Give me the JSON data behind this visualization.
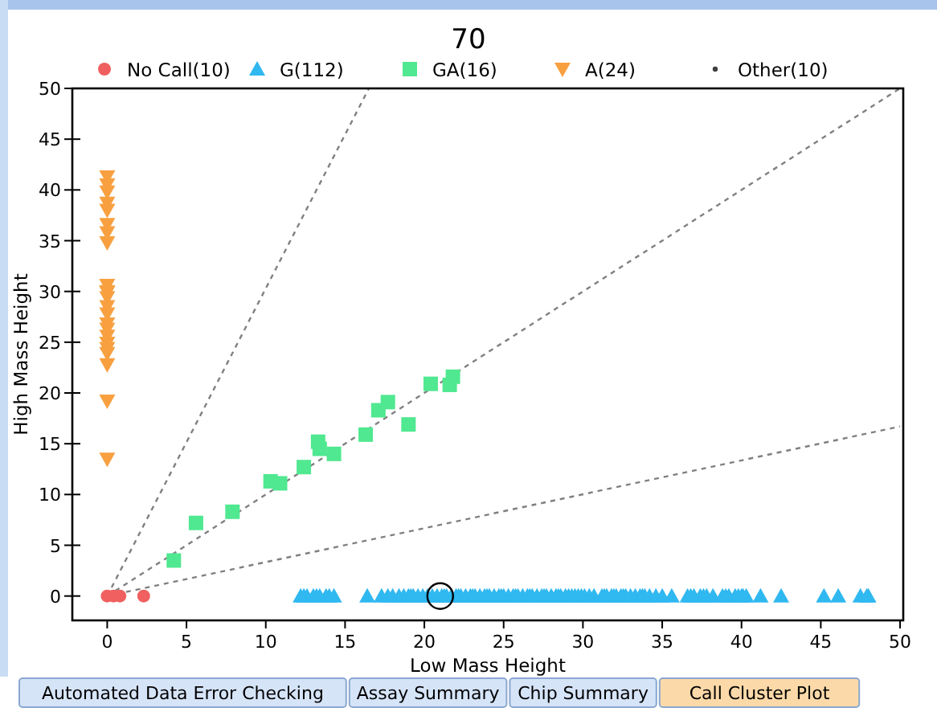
{
  "chart_data": {
    "type": "scatter",
    "title": "70",
    "xlabel": "Low Mass Height",
    "ylabel": "High Mass Height",
    "xlim": [
      -2.2,
      50.2
    ],
    "ylim": [
      -2.4,
      50
    ],
    "xticks": [
      0,
      5,
      10,
      15,
      20,
      25,
      30,
      35,
      40,
      45,
      50
    ],
    "yticks": [
      0,
      5,
      10,
      15,
      20,
      25,
      30,
      35,
      40,
      45,
      50
    ],
    "grid": false,
    "legend": "top",
    "line_style": "dashed",
    "annotations": [
      "Automated Data Error Checking",
      "Assay Summary",
      "Chip Summary",
      "Call Cluster Plot"
    ],
    "series": [
      {
        "type": "line",
        "color": "#808080",
        "x": [
          0,
          16.5
        ],
        "values": [
          0,
          50
        ]
      },
      {
        "type": "line",
        "color": "#808080",
        "x": [
          0,
          50
        ],
        "values": [
          0,
          50
        ]
      },
      {
        "type": "line",
        "color": "#808080",
        "x": [
          0,
          50
        ],
        "values": [
          0,
          16.7
        ]
      },
      {
        "name": "No Call(10)",
        "color": "#f06060",
        "marker": "circle",
        "x": [
          0,
          0.4,
          0.8,
          2.3
        ],
        "values": [
          0,
          0,
          0,
          0
        ]
      },
      {
        "name": "G(112)",
        "color": "#30b8f0",
        "marker": "triangle",
        "x": [
          12.2,
          12.4,
          12.6,
          13.0,
          13.2,
          13.4,
          13.8,
          14.0,
          14.3,
          16.4,
          17.3,
          17.7,
          18.0,
          18.4,
          18.7,
          19.0,
          19.15,
          19.3,
          19.6,
          19.9,
          20.2,
          20.5,
          20.8,
          21.1,
          21.25,
          21.4,
          21.7,
          22.0,
          22.15,
          22.3,
          22.6,
          22.9,
          23.05,
          23.2,
          23.5,
          23.8,
          23.95,
          24.1,
          24.4,
          24.7,
          24.85,
          25.0,
          25.3,
          25.6,
          25.75,
          25.9,
          26.2,
          26.5,
          26.65,
          26.8,
          27.1,
          27.4,
          27.55,
          27.7,
          28.0,
          28.3,
          28.45,
          28.6,
          28.9,
          29.1,
          29.3,
          29.5,
          29.7,
          29.9,
          30.1,
          30.4,
          30.7,
          31.2,
          31.35,
          31.5,
          31.8,
          31.95,
          32.1,
          32.4,
          32.55,
          32.7,
          33.0,
          33.3,
          33.6,
          33.75,
          33.9,
          34.2,
          34.6,
          35.0,
          35.6,
          36.6,
          36.8,
          37.0,
          37.4,
          37.6,
          37.8,
          38.2,
          38.8,
          39.0,
          39.2,
          39.6,
          39.8,
          40.0,
          40.1,
          40.3,
          41.2,
          42.5,
          45.2,
          46.1,
          47.5,
          47.9,
          48.0
        ],
        "values": [
          0,
          0,
          0,
          0,
          0,
          0,
          0,
          0,
          0,
          0,
          0,
          0,
          0,
          0,
          0,
          0,
          0,
          0,
          0,
          0,
          0,
          0,
          0,
          0,
          0,
          0,
          0,
          0,
          0,
          0,
          0,
          0,
          0,
          0,
          0,
          0,
          0,
          0,
          0,
          0,
          0,
          0,
          0,
          0,
          0,
          0,
          0,
          0,
          0,
          0,
          0,
          0,
          0,
          0,
          0,
          0,
          0,
          0,
          0,
          0,
          0,
          0,
          0,
          0,
          0,
          0,
          0,
          0,
          0,
          0,
          0,
          0,
          0,
          0,
          0,
          0,
          0,
          0,
          0,
          0,
          0,
          0,
          0,
          0,
          0,
          0,
          0,
          0,
          0,
          0,
          0,
          0,
          0,
          0,
          0,
          0,
          0,
          0,
          0,
          0,
          0,
          0,
          0,
          0,
          0,
          0,
          0
        ]
      },
      {
        "name": "GA(16)",
        "color": "#50e890",
        "marker": "square",
        "x": [
          4.2,
          5.6,
          7.9,
          10.3,
          10.9,
          12.4,
          13.3,
          13.4,
          14.3,
          16.3,
          17.1,
          17.7,
          19.0,
          20.4,
          21.6,
          21.8
        ],
        "values": [
          3.5,
          7.2,
          8.3,
          11.3,
          11.1,
          12.7,
          15.2,
          14.5,
          14.0,
          15.9,
          18.3,
          19.1,
          16.9,
          20.9,
          20.8,
          21.6
        ]
      },
      {
        "name": "A(24)",
        "color": "#f8a040",
        "marker": "triangle-down",
        "x": [
          0,
          0,
          0,
          0,
          0,
          0,
          0,
          0,
          0,
          0,
          0,
          0,
          0,
          0,
          0,
          0,
          0,
          0,
          0,
          0,
          0,
          0,
          0
        ],
        "values": [
          41.3,
          40.5,
          39.8,
          38.7,
          38.0,
          36.6,
          35.8,
          34.8,
          30.6,
          30.0,
          29.9,
          29.4,
          28.5,
          27.8,
          26.8,
          26.3,
          25.6,
          24.9,
          24.4,
          23.9,
          22.8,
          19.2,
          13.5
        ]
      },
      {
        "name": "Other(10)",
        "color": "#404040",
        "marker": "point"
      },
      {
        "color": "#000000",
        "marker": "circle",
        "x": [
          21
        ],
        "values": [
          0
        ]
      }
    ]
  }
}
